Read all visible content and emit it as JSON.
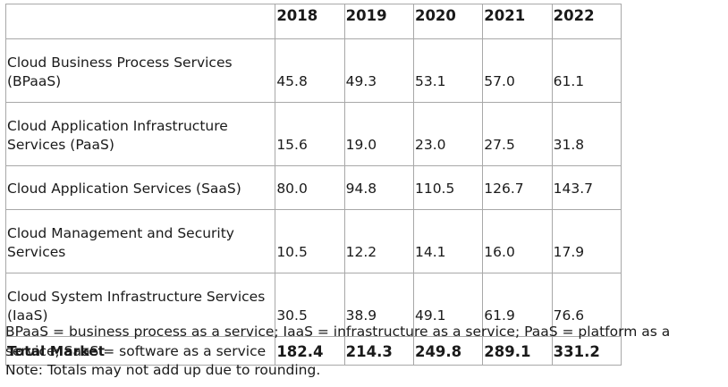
{
  "table": {
    "headers": [
      "",
      "2018",
      "2019",
      "2020",
      "2021",
      "2022"
    ],
    "rows": [
      {
        "label": "Cloud Business Process Services (BPaaS)",
        "values": [
          "45.8",
          "49.3",
          "53.1",
          "57.0",
          "61.1"
        ]
      },
      {
        "label": "Cloud Application Infrastructure Services (PaaS)",
        "values": [
          "15.6",
          "19.0",
          "23.0",
          "27.5",
          "31.8"
        ]
      },
      {
        "label": "Cloud Application Services (SaaS)",
        "values": [
          "80.0",
          "94.8",
          "110.5",
          "126.7",
          "143.7"
        ]
      },
      {
        "label": "Cloud Management and Security Services",
        "values": [
          "10.5",
          "12.2",
          "14.1",
          "16.0",
          "17.9"
        ]
      },
      {
        "label": "Cloud System Infrastructure Services (IaaS)",
        "values": [
          "30.5",
          "38.9",
          "49.1",
          "61.9",
          "76.6"
        ]
      }
    ],
    "total": {
      "label": "Total Market",
      "values": [
        "182.4",
        "214.3",
        "249.8",
        "289.1",
        "331.2"
      ]
    }
  },
  "notes": {
    "abbreviations": "BPaaS = business process as a service; IaaS = infrastructure as a service; PaaS = platform as a service; SaaS = software as a service",
    "rounding": "Note: Totals may not add up due to rounding."
  }
}
